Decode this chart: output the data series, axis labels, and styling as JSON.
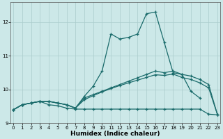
{
  "xlabel": "Humidex (Indice chaleur)",
  "x_values": [
    0,
    1,
    2,
    3,
    4,
    5,
    6,
    7,
    8,
    9,
    10,
    11,
    12,
    13,
    14,
    15,
    16,
    17,
    18,
    19,
    20,
    21,
    22,
    23
  ],
  "line_max": [
    9.4,
    9.55,
    9.6,
    9.65,
    9.65,
    9.6,
    9.55,
    9.45,
    9.8,
    10.1,
    10.55,
    11.65,
    11.5,
    11.55,
    11.65,
    12.25,
    12.3,
    11.4,
    10.5,
    10.45,
    9.95,
    9.75,
    null,
    null
  ],
  "line_q3": [
    9.4,
    9.55,
    9.6,
    9.65,
    9.65,
    9.6,
    9.55,
    9.45,
    9.75,
    9.85,
    9.95,
    10.05,
    10.15,
    10.25,
    10.35,
    10.45,
    10.55,
    10.5,
    10.55,
    10.45,
    10.4,
    10.3,
    10.15,
    9.25
  ],
  "line_q1": [
    9.4,
    9.55,
    9.6,
    9.65,
    9.65,
    9.6,
    9.55,
    9.45,
    9.7,
    9.82,
    9.93,
    10.03,
    10.12,
    10.2,
    10.28,
    10.36,
    10.44,
    10.42,
    10.46,
    10.36,
    10.3,
    10.2,
    10.05,
    9.25
  ],
  "line_min": [
    9.4,
    9.55,
    9.6,
    9.65,
    9.55,
    9.52,
    9.45,
    9.42,
    9.42,
    9.42,
    9.42,
    9.42,
    9.42,
    9.42,
    9.42,
    9.42,
    9.42,
    9.42,
    9.42,
    9.42,
    9.42,
    9.42,
    9.27,
    9.25
  ],
  "bg_color": "#cce8e8",
  "grid_color": "#aacccc",
  "line_color": "#1a6b6b",
  "ylim": [
    9.0,
    12.6
  ],
  "yticks": [
    9,
    10,
    11,
    12
  ],
  "xticks": [
    0,
    1,
    2,
    3,
    4,
    5,
    6,
    7,
    8,
    9,
    10,
    11,
    12,
    13,
    14,
    15,
    16,
    17,
    18,
    19,
    20,
    21,
    22,
    23
  ]
}
